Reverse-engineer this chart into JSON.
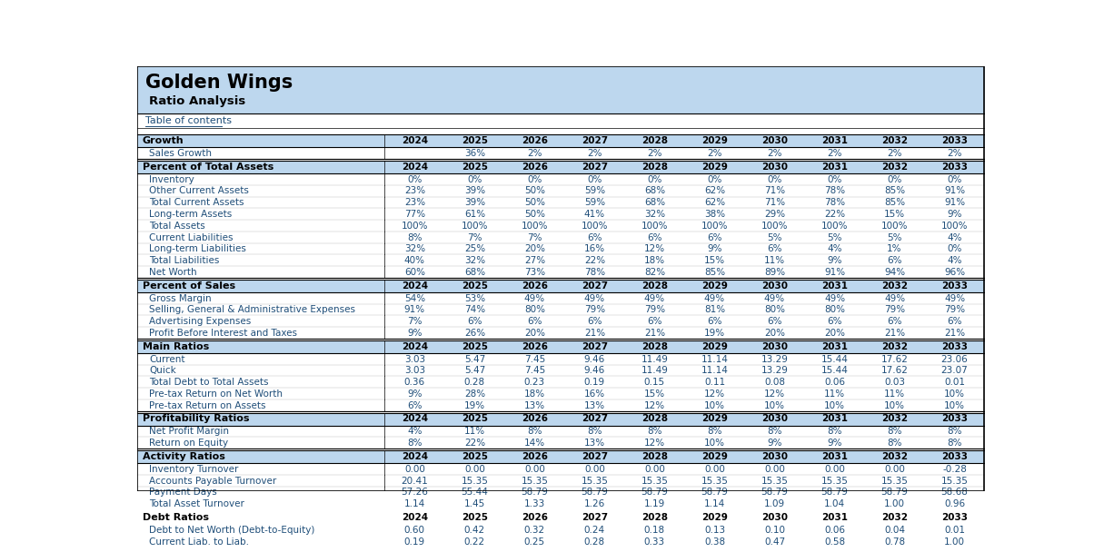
{
  "title": "Golden Wings",
  "subtitle": "Ratio Analysis",
  "link_text": "Table of contents",
  "header_bg": "#BDD7EE",
  "section_header_bg": "#BDD7EE",
  "years": [
    "2024",
    "2025",
    "2026",
    "2027",
    "2028",
    "2029",
    "2030",
    "2031",
    "2032",
    "2033"
  ],
  "sections": [
    {
      "name": "Growth",
      "rows": [
        {
          "label": "Sales Growth",
          "values": [
            "",
            "36%",
            "2%",
            "2%",
            "2%",
            "2%",
            "2%",
            "2%",
            "2%",
            "2%"
          ]
        }
      ]
    },
    {
      "name": "Percent of Total Assets",
      "rows": [
        {
          "label": "Inventory",
          "values": [
            "0%",
            "0%",
            "0%",
            "0%",
            "0%",
            "0%",
            "0%",
            "0%",
            "0%",
            "0%"
          ]
        },
        {
          "label": "Other Current Assets",
          "values": [
            "23%",
            "39%",
            "50%",
            "59%",
            "68%",
            "62%",
            "71%",
            "78%",
            "85%",
            "91%"
          ]
        },
        {
          "label": "Total Current Assets",
          "values": [
            "23%",
            "39%",
            "50%",
            "59%",
            "68%",
            "62%",
            "71%",
            "78%",
            "85%",
            "91%"
          ]
        },
        {
          "label": "Long-term Assets",
          "values": [
            "77%",
            "61%",
            "50%",
            "41%",
            "32%",
            "38%",
            "29%",
            "22%",
            "15%",
            "9%"
          ]
        },
        {
          "label": "Total Assets",
          "values": [
            "100%",
            "100%",
            "100%",
            "100%",
            "100%",
            "100%",
            "100%",
            "100%",
            "100%",
            "100%"
          ]
        },
        {
          "label": "Current Liabilities",
          "values": [
            "8%",
            "7%",
            "7%",
            "6%",
            "6%",
            "6%",
            "5%",
            "5%",
            "5%",
            "4%"
          ]
        },
        {
          "label": "Long-term Liabilities",
          "values": [
            "32%",
            "25%",
            "20%",
            "16%",
            "12%",
            "9%",
            "6%",
            "4%",
            "1%",
            "0%"
          ]
        },
        {
          "label": "Total Liabilities",
          "values": [
            "40%",
            "32%",
            "27%",
            "22%",
            "18%",
            "15%",
            "11%",
            "9%",
            "6%",
            "4%"
          ]
        },
        {
          "label": "Net Worth",
          "values": [
            "60%",
            "68%",
            "73%",
            "78%",
            "82%",
            "85%",
            "89%",
            "91%",
            "94%",
            "96%"
          ]
        }
      ]
    },
    {
      "name": "Percent of Sales",
      "rows": [
        {
          "label": "Gross Margin",
          "values": [
            "54%",
            "53%",
            "49%",
            "49%",
            "49%",
            "49%",
            "49%",
            "49%",
            "49%",
            "49%"
          ]
        },
        {
          "label": "Selling, General & Administrative Expenses",
          "values": [
            "91%",
            "74%",
            "80%",
            "79%",
            "79%",
            "81%",
            "80%",
            "80%",
            "79%",
            "79%"
          ]
        },
        {
          "label": "Advertising Expenses",
          "values": [
            "7%",
            "6%",
            "6%",
            "6%",
            "6%",
            "6%",
            "6%",
            "6%",
            "6%",
            "6%"
          ]
        },
        {
          "label": "Profit Before Interest and Taxes",
          "values": [
            "9%",
            "26%",
            "20%",
            "21%",
            "21%",
            "19%",
            "20%",
            "20%",
            "21%",
            "21%"
          ]
        }
      ]
    },
    {
      "name": "Main Ratios",
      "rows": [
        {
          "label": "Current",
          "values": [
            "3.03",
            "5.47",
            "7.45",
            "9.46",
            "11.49",
            "11.14",
            "13.29",
            "15.44",
            "17.62",
            "23.06"
          ]
        },
        {
          "label": "Quick",
          "values": [
            "3.03",
            "5.47",
            "7.45",
            "9.46",
            "11.49",
            "11.14",
            "13.29",
            "15.44",
            "17.62",
            "23.07"
          ]
        },
        {
          "label": "Total Debt to Total Assets",
          "values": [
            "0.36",
            "0.28",
            "0.23",
            "0.19",
            "0.15",
            "0.11",
            "0.08",
            "0.06",
            "0.03",
            "0.01"
          ]
        },
        {
          "label": "Pre-tax Return on Net Worth",
          "values": [
            "9%",
            "28%",
            "18%",
            "16%",
            "15%",
            "12%",
            "12%",
            "11%",
            "11%",
            "10%"
          ]
        },
        {
          "label": "Pre-tax Return on Assets",
          "values": [
            "6%",
            "19%",
            "13%",
            "13%",
            "12%",
            "10%",
            "10%",
            "10%",
            "10%",
            "10%"
          ]
        }
      ]
    },
    {
      "name": "Profitability Ratios",
      "rows": [
        {
          "label": "Net Profit Margin",
          "values": [
            "4%",
            "11%",
            "8%",
            "8%",
            "8%",
            "8%",
            "8%",
            "8%",
            "8%",
            "8%"
          ]
        },
        {
          "label": "Return on Equity",
          "values": [
            "8%",
            "22%",
            "14%",
            "13%",
            "12%",
            "10%",
            "9%",
            "9%",
            "8%",
            "8%"
          ]
        }
      ]
    },
    {
      "name": "Activity Ratios",
      "rows": [
        {
          "label": "Inventory Turnover",
          "values": [
            "0.00",
            "0.00",
            "0.00",
            "0.00",
            "0.00",
            "0.00",
            "0.00",
            "0.00",
            "0.00",
            "-0.28"
          ]
        },
        {
          "label": "Accounts Payable Turnover",
          "values": [
            "20.41",
            "15.35",
            "15.35",
            "15.35",
            "15.35",
            "15.35",
            "15.35",
            "15.35",
            "15.35",
            "15.35"
          ]
        },
        {
          "label": "Payment Days",
          "values": [
            "57.26",
            "55.44",
            "58.79",
            "58.79",
            "58.79",
            "58.79",
            "58.79",
            "58.79",
            "58.79",
            "58.68"
          ]
        },
        {
          "label": "Total Asset Turnover",
          "values": [
            "1.14",
            "1.45",
            "1.33",
            "1.26",
            "1.19",
            "1.14",
            "1.09",
            "1.04",
            "1.00",
            "0.96"
          ]
        }
      ]
    },
    {
      "name": "Debt Ratios",
      "rows": [
        {
          "label": "Debt to Net Worth (Debt-to-Equity)",
          "values": [
            "0.60",
            "0.42",
            "0.32",
            "0.24",
            "0.18",
            "0.13",
            "0.10",
            "0.06",
            "0.04",
            "0.01"
          ]
        },
        {
          "label": "Current Liab. to Liab.",
          "values": [
            "0.19",
            "0.22",
            "0.25",
            "0.28",
            "0.33",
            "0.38",
            "0.47",
            "0.58",
            "0.78",
            "1.00"
          ]
        }
      ]
    }
  ]
}
